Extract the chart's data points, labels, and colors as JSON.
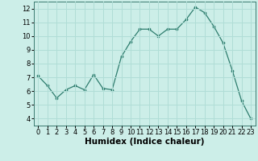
{
  "x": [
    0,
    1,
    2,
    3,
    4,
    5,
    6,
    7,
    8,
    9,
    10,
    11,
    12,
    13,
    14,
    15,
    16,
    17,
    18,
    19,
    20,
    21,
    22,
    23
  ],
  "y": [
    7.1,
    6.4,
    5.5,
    6.1,
    6.4,
    6.1,
    7.2,
    6.2,
    6.1,
    8.5,
    9.6,
    10.5,
    10.5,
    10.0,
    10.5,
    10.5,
    11.2,
    12.1,
    11.7,
    10.7,
    9.5,
    7.5,
    5.3,
    4.0
  ],
  "xlabel": "Humidex (Indice chaleur)",
  "xlim": [
    -0.5,
    23.5
  ],
  "ylim": [
    3.5,
    12.5
  ],
  "yticks": [
    4,
    5,
    6,
    7,
    8,
    9,
    10,
    11,
    12
  ],
  "xticks": [
    0,
    1,
    2,
    3,
    4,
    5,
    6,
    7,
    8,
    9,
    10,
    11,
    12,
    13,
    14,
    15,
    16,
    17,
    18,
    19,
    20,
    21,
    22,
    23
  ],
  "line_color": "#2e7d6e",
  "marker_color": "#2e7d6e",
  "bg_color": "#cceee8",
  "grid_color": "#b0ddd6",
  "label_fontsize": 7.5,
  "tick_fontsize": 6.0
}
